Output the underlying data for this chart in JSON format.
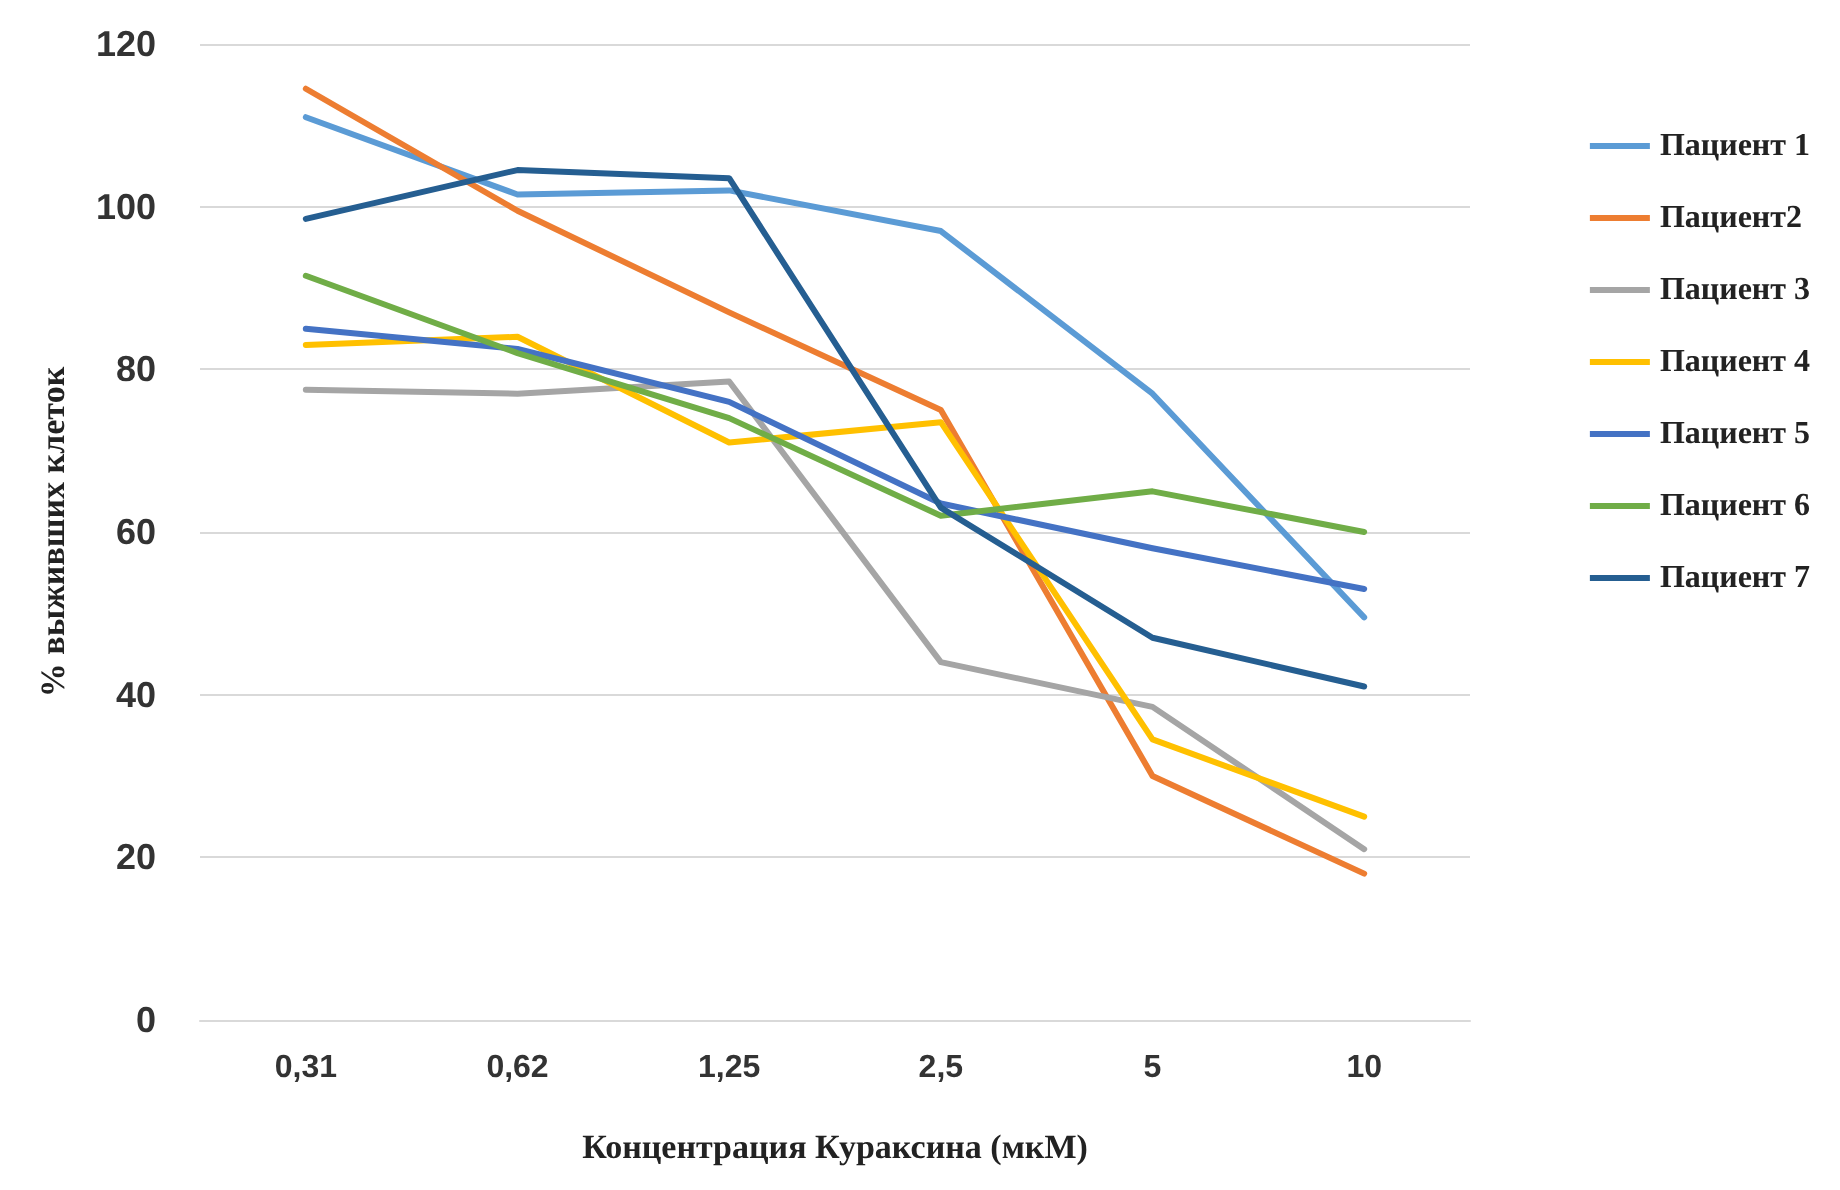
{
  "chart_data": {
    "type": "line",
    "xlabel": "Концентрация Кураксина (мкМ)",
    "ylabel": "% выживших клеток",
    "categories": [
      "0,31",
      "0,62",
      "1,25",
      "2,5",
      "5",
      "10"
    ],
    "ylim": [
      0,
      120
    ],
    "yticks": [
      0,
      20,
      40,
      60,
      80,
      100,
      120
    ],
    "grid": "y",
    "legend": "right",
    "marker": "none",
    "line_style": "solid",
    "series": [
      {
        "name": "Пациент 1",
        "color": "#5b9bd5",
        "values": [
          111,
          101.5,
          102,
          97,
          77,
          49.5
        ]
      },
      {
        "name": "Пациент2",
        "color": "#ed7d31",
        "values": [
          114.5,
          99.5,
          87,
          75,
          30,
          18
        ]
      },
      {
        "name": "Пациент 3",
        "color": "#a5a5a5",
        "values": [
          77.5,
          77,
          78.5,
          44,
          38.5,
          21
        ]
      },
      {
        "name": "Пациент 4",
        "color": "#ffc000",
        "values": [
          83,
          84,
          71,
          73.5,
          34.5,
          25
        ]
      },
      {
        "name": "Пациент 5",
        "color": "#4472c4",
        "values": [
          85,
          82.5,
          76,
          63.5,
          58,
          53
        ]
      },
      {
        "name": "Пациент 6",
        "color": "#70ad47",
        "values": [
          91.5,
          82,
          74,
          62,
          65,
          60
        ]
      },
      {
        "name": "Пациент 7",
        "color": "#255e91",
        "values": [
          98.5,
          104.5,
          103.5,
          63,
          47,
          41
        ]
      }
    ]
  }
}
